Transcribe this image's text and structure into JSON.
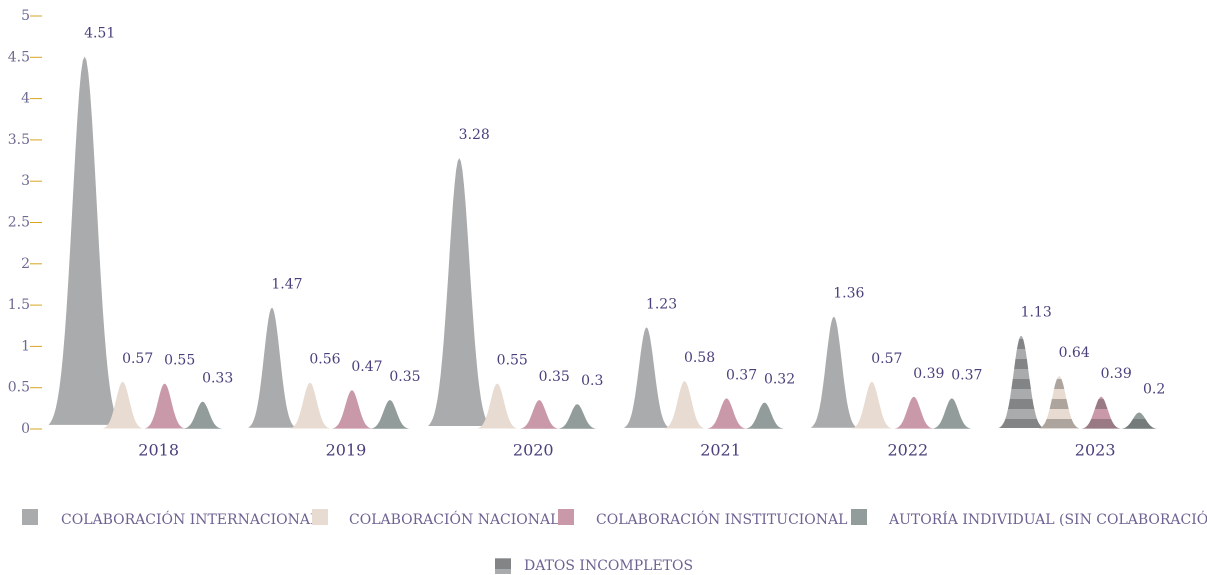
{
  "chart_data": {
    "type": "bell",
    "categories": [
      "2018",
      "2019",
      "2020",
      "2021",
      "2022",
      "2023"
    ],
    "series": [
      {
        "name": "COLABORACIÓN INTERNACIONAL",
        "color": "#a9abac",
        "values": [
          4.51,
          1.47,
          3.28,
          1.23,
          1.36,
          1.13
        ]
      },
      {
        "name": "COLABORACIÓN NACIONAL",
        "color": "#e8dbd1",
        "values": [
          0.57,
          0.56,
          0.55,
          0.58,
          0.57,
          0.64
        ]
      },
      {
        "name": "COLABORACIÓN INSTITUCIONAL",
        "color": "#c999aa",
        "values": [
          0.55,
          0.47,
          0.35,
          0.37,
          0.39,
          0.39
        ]
      },
      {
        "name": "AUTORÍA INDIVIDUAL (SIN COLABORACIÓN)",
        "color": "#929c9b",
        "values": [
          0.33,
          0.35,
          0.3,
          0.32,
          0.37,
          0.2
        ]
      }
    ],
    "incomplete": {
      "name": "DATOS INCOMPLETOS",
      "categories": [
        "2023"
      ]
    },
    "ylim": [
      0,
      5
    ],
    "yticks": [
      0,
      0.5,
      1,
      1.5,
      2,
      2.5,
      3,
      3.5,
      4,
      4.5,
      5
    ],
    "tick_color": "#d9a521"
  }
}
